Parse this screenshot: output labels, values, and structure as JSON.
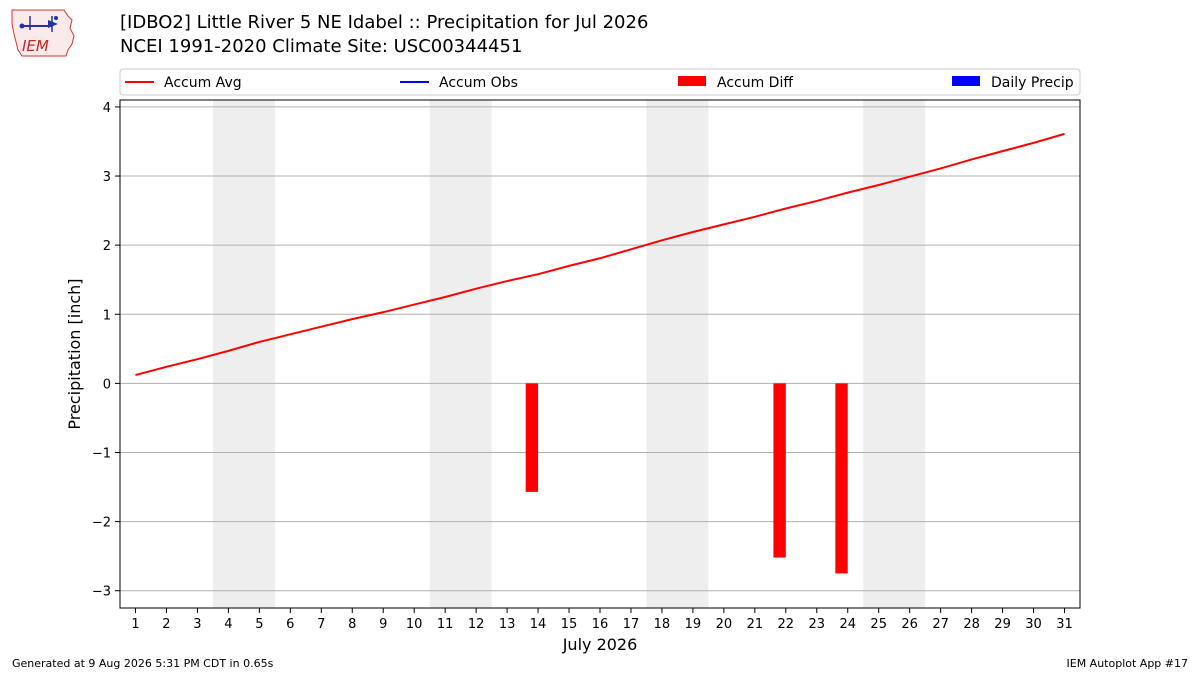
{
  "header": {
    "logo_text": "IEM",
    "title_line1": "[IDBO2] Little River 5 NE Idabel :: Precipitation for Jul 2026",
    "title_line2": "NCEI 1991-2020 Climate Site: USC00344451"
  },
  "footer": {
    "left": "Generated at 9 Aug 2026 5:31 PM CDT in 0.65s",
    "right": "IEM Autoplot App #17"
  },
  "chart_data": {
    "type": "bar",
    "xlabel": "July 2026",
    "ylabel": "Precipitation [inch]",
    "xlim": [
      0.5,
      31.5
    ],
    "ylim": [
      -3.25,
      4.1
    ],
    "yticks": [
      -3,
      -2,
      -1,
      0,
      1,
      2,
      3,
      4
    ],
    "ytick_labels": [
      "−3",
      "−2",
      "−1",
      "0",
      "1",
      "2",
      "3",
      "4"
    ],
    "x": [
      1,
      2,
      3,
      4,
      5,
      6,
      7,
      8,
      9,
      10,
      11,
      12,
      13,
      14,
      15,
      16,
      17,
      18,
      19,
      20,
      21,
      22,
      23,
      24,
      25,
      26,
      27,
      28,
      29,
      30,
      31
    ],
    "x_labels": [
      "1",
      "2",
      "3",
      "4",
      "5",
      "6",
      "7",
      "8",
      "9",
      "10",
      "11",
      "12",
      "13",
      "14",
      "15",
      "16",
      "17",
      "18",
      "19",
      "20",
      "21",
      "22",
      "23",
      "24",
      "25",
      "26",
      "27",
      "28",
      "29",
      "30",
      "31"
    ],
    "weekend_spans": [
      [
        3.5,
        5.5
      ],
      [
        10.5,
        12.5
      ],
      [
        17.5,
        19.5
      ],
      [
        24.5,
        26.5
      ]
    ],
    "grid": "horizontal",
    "legend": {
      "placement": "top",
      "entries": [
        {
          "label": "Accum Avg",
          "kind": "line",
          "color": "#ff0000"
        },
        {
          "label": "Accum Obs",
          "kind": "line",
          "color": "#0000ff"
        },
        {
          "label": "Accum Diff",
          "kind": "bar",
          "color": "#ff0000"
        },
        {
          "label": "Daily Precip",
          "kind": "bar",
          "color": "#0000ff"
        }
      ]
    },
    "series": [
      {
        "name": "Accum Avg",
        "type": "line",
        "color": "#ff0000",
        "x": [
          1,
          2,
          3,
          4,
          5,
          6,
          7,
          8,
          9,
          10,
          11,
          12,
          13,
          14,
          15,
          16,
          17,
          18,
          19,
          20,
          21,
          22,
          23,
          24,
          25,
          26,
          27,
          28,
          29,
          30,
          31
        ],
        "values": [
          0.12,
          0.24,
          0.35,
          0.47,
          0.6,
          0.71,
          0.82,
          0.93,
          1.03,
          1.14,
          1.25,
          1.37,
          1.48,
          1.58,
          1.7,
          1.81,
          1.94,
          2.07,
          2.19,
          2.3,
          2.41,
          2.53,
          2.64,
          2.76,
          2.87,
          2.99,
          3.11,
          3.24,
          3.36,
          3.48,
          3.61
        ]
      },
      {
        "name": "Accum Diff",
        "type": "bar",
        "color": "#ff0000",
        "x": [
          13.8,
          21.8,
          23.8
        ],
        "values": [
          -1.57,
          -2.52,
          -2.75
        ],
        "bar_width": 0.4
      }
    ]
  }
}
